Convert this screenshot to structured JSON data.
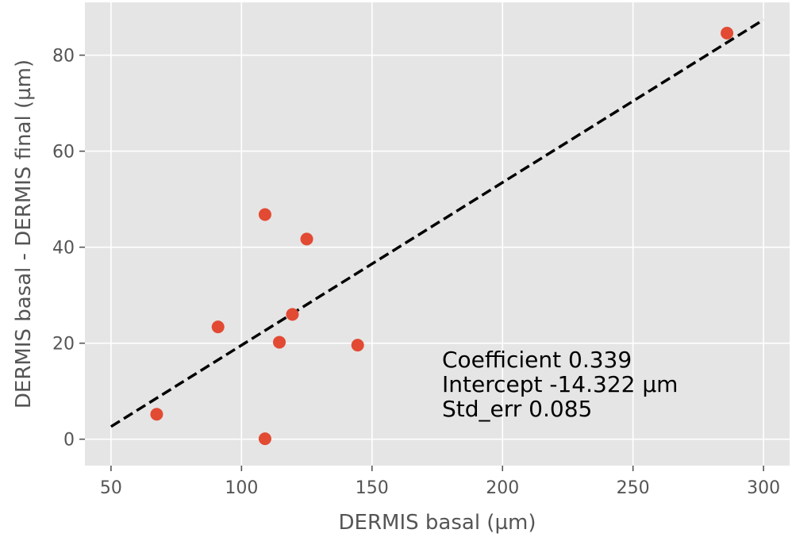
{
  "chart_data": {
    "type": "scatter",
    "xlabel": "DERMIS basal (µm)",
    "ylabel": "DERMIS basal - DERMIS final (µm)",
    "xlim": [
      40,
      310
    ],
    "ylim": [
      -5.5,
      91
    ],
    "xticks": [
      50,
      100,
      150,
      200,
      250,
      300
    ],
    "yticks": [
      0,
      20,
      40,
      60,
      80
    ],
    "grid": true,
    "points": [
      {
        "x": 67.5,
        "y": 5.2
      },
      {
        "x": 91,
        "y": 23.4
      },
      {
        "x": 109,
        "y": 46.8
      },
      {
        "x": 109,
        "y": 0.1
      },
      {
        "x": 114.5,
        "y": 20.2
      },
      {
        "x": 119.5,
        "y": 26.0
      },
      {
        "x": 125,
        "y": 41.7
      },
      {
        "x": 144.5,
        "y": 19.6
      },
      {
        "x": 286,
        "y": 84.6
      }
    ],
    "fit_line": {
      "x": [
        50,
        300
      ],
      "y": [
        2.628,
        87.378
      ],
      "style": "dashed"
    },
    "annotations": [
      "Coefficient 0.339",
      "Intercept -14.322 µm",
      "Std_err 0.085"
    ]
  },
  "colors": {
    "background": "#e5e5e5",
    "grid": "#ffffff",
    "point": "#e24a33",
    "fit_line": "#000000"
  }
}
